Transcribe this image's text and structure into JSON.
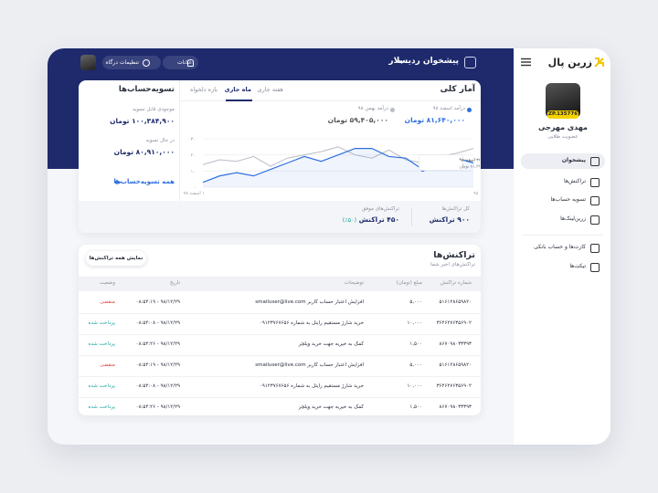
{
  "sidebar": {
    "logo": "زرین پال",
    "badge": "ZP.135776",
    "user_name": "مهدی مهرجی",
    "membership": "عضویت طلایی",
    "menu": [
      "پیشخوان",
      "تراکنش‌ها",
      "تسویه حساب‌ها",
      "زرین‌لینک‌ها",
      "کارت‌ها و حساب بانکی",
      "تیکت‌ها"
    ],
    "active_item": 0
  },
  "header": {
    "gateway": "پیشخوان ردیسلار",
    "settings": "تنظیمات درگاه",
    "notifications": "اعلانات"
  },
  "stats": {
    "title": "آمار کلی",
    "tabs": [
      "هفته جاری",
      "ماه جاری",
      "بازه دلخواه"
    ],
    "active_tab": 1,
    "chart": {
      "type": "line",
      "series": [
        {
          "name": "درآمد اسفند ۹۸",
          "total": "۸۱,۶۴۰,۰۰۰ تومان",
          "color": "#2f6fe0",
          "values": [
            3,
            7,
            9,
            7,
            11,
            15,
            19,
            16,
            20,
            24,
            24,
            19,
            18,
            11,
            13,
            18,
            15
          ]
        },
        {
          "name": "درآمد بهمن ۹۸",
          "total": "۵۹,۴۰۵,۰۰۰ تومان",
          "color": "#b9bdc6",
          "values": [
            14,
            17,
            16,
            19,
            13,
            18,
            20,
            22,
            25,
            20,
            18,
            23,
            17,
            15,
            19,
            21,
            24
          ]
        }
      ],
      "ylim": [
        0,
        30
      ],
      "yticks": [
        {
          "value": 0,
          "label": "۰"
        },
        {
          "value": 10,
          "label": "۱۰"
        },
        {
          "value": 20,
          "label": "۲۰"
        },
        {
          "value": 30,
          "label": "۳۰"
        }
      ],
      "x_labels": [
        "۱ اسفند ۹۸",
        "۲۹ اسفند ۹۸"
      ],
      "tooltip": {
        "date": "۲۶ اسفند ۹۸",
        "amount": "۸۱,۶۴۰,۰۰۰ تومان"
      }
    },
    "totals": {
      "all_label": "کل تراکنش‌ها",
      "all": "۹۰۰ تراکنش",
      "success_label": "تراکنش‌های موفق",
      "success": "۴۵۰ تراکنش",
      "success_share": "(۵۰٪)"
    }
  },
  "settlements": {
    "title": "تسویه‌حساب‌ها",
    "available_label": "موجودی قابل تسویه",
    "available": "۱۰۰,۳۸۴,۹۰۰ تومان",
    "pending_label": "در حال تسویه",
    "pending": "۸۰,۹۱۰,۰۰۰ تومان",
    "link": "همه تسویه‌حساب‌ها"
  },
  "transactions": {
    "title": "تراکنش‌ها",
    "subtitle": "تراکنش‌های اخیر شما",
    "button": "نمایش همه تراکنش‌ها",
    "columns": [
      "شماره تراکنش",
      "مبلغ (تومان)",
      "توضیحات",
      "تاریخ",
      "وضعیت"
    ],
    "rows": [
      {
        "id": "۵۱۶۱۲۸۶۵۹۸۲۰",
        "amount": "۵,۰۰۰",
        "description": "افزایش اعتبار حساب کاربر smailuser@live.com",
        "date": "۹۸/۱۲/۲۹ - ۰۸:۵۴:۱۹",
        "status": "منقضی",
        "status_color": "#e0413a"
      },
      {
        "id": "۳۶۴۶۲۷۶۳۵۶۹۰۲",
        "amount": "۱۰,۰۰۰",
        "description": "خرید شارژ مستقیم رایتل به شماره ۰۹۱۲۳۷۶۷۶۵۶",
        "date": "۹۸/۱۲/۲۹ - ۰۸:۵۴:۰۸",
        "status": "پرداخت شده",
        "status_color": "#1aa39a"
      },
      {
        "id": "۸۶۷۰۹۸۰۳۳۳۹۳",
        "amount": "۱,۵۰۰",
        "description": "کمک به خیریه جهت خرید ویلچر",
        "date": "۹۸/۱۲/۲۹ - ۰۸:۵۴:۲۶",
        "status": "پرداخت شده",
        "status_color": "#1aa39a"
      },
      {
        "id": "۵۱۶۱۲۸۶۵۹۸۲۰",
        "amount": "۵,۰۰۰",
        "description": "افزایش اعتبار حساب کاربر smailuser@live.com",
        "date": "۹۸/۱۲/۲۹ - ۰۸:۵۴:۱۹",
        "status": "منقضی",
        "status_color": "#e0413a"
      },
      {
        "id": "۳۶۴۶۲۷۶۳۵۶۹۰۲",
        "amount": "۱۰,۰۰۰",
        "description": "خرید شارژ مستقیم رایتل به شماره ۰۹۱۲۳۷۶۷۶۵۶",
        "date": "۹۸/۱۲/۲۹ - ۰۸:۵۴:۰۸",
        "status": "پرداخت شده",
        "status_color": "#1aa39a"
      },
      {
        "id": "۸۶۷۰۹۸۰۳۳۳۹۳",
        "amount": "۱,۵۰۰",
        "description": "کمک به خیریه جهت خرید ویلچر",
        "date": "۹۸/۱۲/۲۹ - ۰۸:۵۴:۲۶",
        "status": "پرداخت شده",
        "status_color": "#1aa39a"
      }
    ]
  }
}
